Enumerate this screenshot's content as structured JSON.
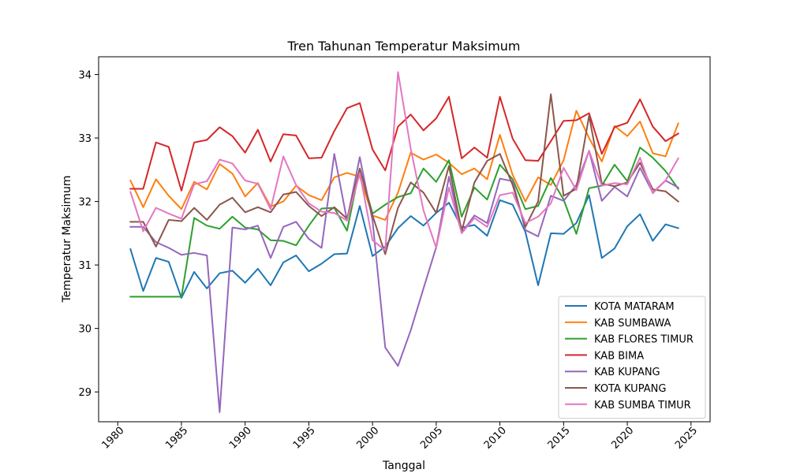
{
  "chart_data": {
    "type": "line",
    "title": "Tren Tahunan Temperatur Maksimum",
    "xlabel": "Tanggal",
    "ylabel": "Temperatur Maksimum",
    "xlim": [
      1978.5,
      2026.5
    ],
    "ylim": [
      28.53,
      34.28
    ],
    "xticks": [
      1980,
      1985,
      1990,
      1995,
      2000,
      2005,
      2010,
      2015,
      2020,
      2025
    ],
    "yticks": [
      29,
      30,
      31,
      32,
      33,
      34
    ],
    "grid": false,
    "legend_position": "lower-right",
    "x": [
      1981,
      1982,
      1983,
      1984,
      1985,
      1986,
      1987,
      1988,
      1989,
      1990,
      1991,
      1992,
      1993,
      1994,
      1995,
      1996,
      1997,
      1998,
      1999,
      2000,
      2001,
      2002,
      2003,
      2004,
      2005,
      2006,
      2007,
      2008,
      2009,
      2010,
      2011,
      2012,
      2013,
      2014,
      2015,
      2016,
      2017,
      2018,
      2019,
      2020,
      2021,
      2022,
      2023,
      2024
    ],
    "series": [
      {
        "name": "KOTA MATARAM",
        "color": "#1f77b4",
        "values": [
          31.25,
          30.59,
          31.11,
          31.05,
          30.48,
          30.89,
          30.63,
          30.87,
          30.91,
          30.72,
          30.94,
          30.68,
          31.04,
          31.15,
          30.9,
          31.02,
          31.17,
          31.18,
          31.93,
          31.14,
          31.29,
          31.58,
          31.77,
          31.62,
          31.82,
          31.98,
          31.59,
          31.63,
          31.46,
          32.02,
          31.95,
          31.52,
          30.68,
          31.5,
          31.49,
          31.66,
          32.1,
          31.11,
          31.26,
          31.61,
          31.8,
          31.38,
          31.64,
          31.58
        ]
      },
      {
        "name": "KAB SUMBAWA",
        "color": "#ff7f0e",
        "values": [
          32.33,
          31.91,
          32.35,
          32.09,
          31.88,
          32.31,
          32.19,
          32.59,
          32.44,
          32.08,
          32.29,
          31.92,
          32.0,
          32.25,
          32.1,
          32.02,
          32.38,
          32.45,
          32.39,
          31.78,
          31.71,
          32.14,
          32.77,
          32.66,
          32.74,
          32.61,
          32.43,
          32.52,
          32.35,
          33.05,
          32.42,
          32.0,
          32.38,
          32.26,
          32.65,
          33.43,
          33.0,
          32.63,
          33.19,
          33.03,
          33.26,
          32.76,
          32.71,
          33.23
        ]
      },
      {
        "name": "KAB FLORES TIMUR",
        "color": "#2ca02c",
        "values": [
          30.5,
          30.5,
          30.5,
          30.5,
          30.5,
          31.74,
          31.62,
          31.57,
          31.76,
          31.59,
          31.56,
          31.39,
          31.38,
          31.31,
          31.62,
          31.89,
          31.9,
          31.54,
          32.52,
          31.81,
          31.95,
          32.07,
          32.13,
          32.52,
          32.31,
          32.65,
          31.76,
          32.22,
          32.03,
          32.58,
          32.35,
          31.88,
          31.93,
          32.37,
          32.03,
          31.49,
          32.21,
          32.25,
          32.58,
          32.32,
          32.85,
          32.69,
          32.48,
          32.2
        ]
      },
      {
        "name": "KAB BIMA",
        "color": "#d62728",
        "values": [
          32.2,
          32.2,
          32.93,
          32.86,
          32.17,
          32.93,
          32.97,
          33.17,
          33.03,
          32.77,
          33.13,
          32.63,
          33.06,
          33.04,
          32.68,
          32.69,
          33.11,
          33.47,
          33.55,
          32.82,
          32.49,
          33.18,
          33.37,
          33.12,
          33.31,
          33.65,
          32.68,
          32.85,
          32.69,
          33.65,
          32.99,
          32.65,
          32.64,
          32.95,
          33.27,
          33.28,
          33.39,
          32.75,
          33.17,
          33.24,
          33.61,
          33.18,
          32.95,
          33.07
        ]
      },
      {
        "name": "KAB KUPANG",
        "color": "#9467bd",
        "values": [
          31.6,
          31.6,
          31.36,
          31.27,
          31.16,
          31.19,
          31.15,
          28.68,
          31.59,
          31.56,
          31.62,
          31.11,
          31.6,
          31.68,
          31.41,
          31.27,
          32.75,
          31.7,
          32.7,
          31.7,
          29.7,
          29.41,
          29.97,
          30.63,
          31.28,
          32.39,
          31.51,
          31.78,
          31.66,
          32.36,
          32.32,
          31.55,
          31.45,
          32.09,
          32.01,
          32.26,
          32.8,
          32.01,
          32.23,
          32.08,
          32.53,
          32.14,
          32.33,
          32.22
        ]
      },
      {
        "name": "KOTA KUPANG",
        "color": "#8c564b",
        "values": [
          31.68,
          31.68,
          31.29,
          31.71,
          31.69,
          31.9,
          31.71,
          31.95,
          32.06,
          31.83,
          31.91,
          31.83,
          32.11,
          32.15,
          31.93,
          31.77,
          31.91,
          31.73,
          32.52,
          31.78,
          31.17,
          31.9,
          32.3,
          32.14,
          31.82,
          32.56,
          31.53,
          32.3,
          32.64,
          32.75,
          32.26,
          31.6,
          32.0,
          33.69,
          32.09,
          32.2,
          33.35,
          32.28,
          32.24,
          32.3,
          32.61,
          32.19,
          32.16,
          32.0
        ]
      },
      {
        "name": "KAB SUMBA TIMUR",
        "color": "#e377c2",
        "values": [
          32.15,
          31.53,
          31.9,
          31.81,
          31.73,
          32.27,
          32.32,
          32.66,
          32.6,
          32.33,
          32.28,
          31.88,
          32.71,
          32.26,
          31.97,
          31.84,
          31.82,
          31.7,
          32.45,
          31.39,
          31.23,
          34.04,
          32.83,
          31.86,
          31.27,
          32.22,
          31.5,
          31.74,
          31.6,
          32.1,
          32.14,
          31.66,
          31.76,
          31.97,
          32.53,
          32.18,
          32.8,
          32.25,
          32.29,
          32.27,
          32.69,
          32.13,
          32.33,
          32.68
        ]
      }
    ]
  }
}
